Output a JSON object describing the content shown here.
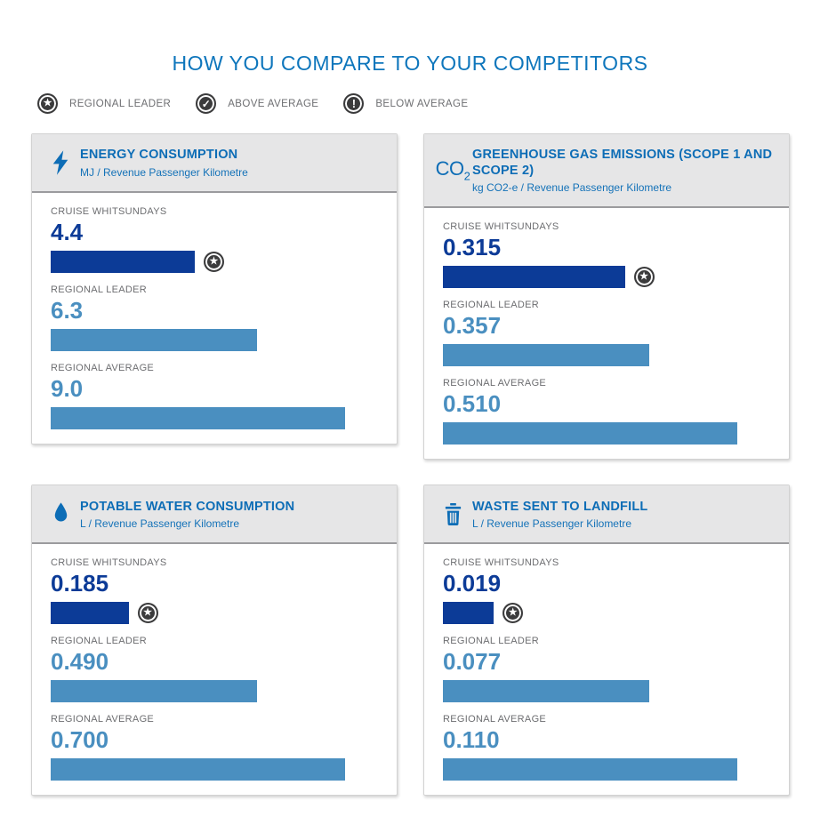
{
  "page_title": "HOW YOU COMPARE TO YOUR COMPETITORS",
  "legend": {
    "items": [
      {
        "icon": "star-badge-icon",
        "glyph": "★",
        "label": "REGIONAL LEADER"
      },
      {
        "icon": "check-badge-icon",
        "glyph": "✓",
        "label": "ABOVE AVERAGE"
      },
      {
        "icon": "exclamation-badge-icon",
        "glyph": "!",
        "label": "BELOW AVERAGE"
      }
    ]
  },
  "icons": {
    "co2_main": "CO",
    "co2_sub": "2"
  },
  "colors": {
    "title_blue": "#0e76bc",
    "card_title_blue": "#0d6db6",
    "dark_bar_blue": "#0c3b97",
    "light_bar_blue": "#4a8fc0",
    "label_gray": "#6d6e71",
    "badge_charcoal": "#3b3b3c",
    "card_header_gray": "#e6e6e7",
    "card_header_border_gray": "#9b9b9e"
  },
  "chart_data": [
    {
      "type": "bar",
      "orientation": "horizontal",
      "icon": "lightning-bolt-icon",
      "title": "ENERGY CONSUMPTION",
      "unit": "MJ / Revenue Passenger Kilometre",
      "categories": [
        "CRUISE WHITSUNDAYS",
        "REGIONAL LEADER",
        "REGIONAL AVERAGE"
      ],
      "values": [
        4.4,
        6.3,
        9.0
      ],
      "value_labels": [
        "4.4",
        "6.3",
        "9.0"
      ],
      "badge": {
        "row_index": 0,
        "type": "regional-leader-star"
      },
      "bar_colors": [
        "#0c3b97",
        "#4a8fc0",
        "#4a8fc0"
      ]
    },
    {
      "type": "bar",
      "orientation": "horizontal",
      "icon": "co2-icon",
      "title": "GREENHOUSE GAS EMISSIONS (SCOPE 1 AND SCOPE 2)",
      "unit": "kg CO2-e / Revenue Passenger Kilometre",
      "categories": [
        "CRUISE WHITSUNDAYS",
        "REGIONAL LEADER",
        "REGIONAL AVERAGE"
      ],
      "values": [
        0.315,
        0.357,
        0.51
      ],
      "value_labels": [
        "0.315",
        "0.357",
        "0.510"
      ],
      "badge": {
        "row_index": 0,
        "type": "regional-leader-star"
      },
      "bar_colors": [
        "#0c3b97",
        "#4a8fc0",
        "#4a8fc0"
      ]
    },
    {
      "type": "bar",
      "orientation": "horizontal",
      "icon": "water-drop-icon",
      "title": "POTABLE WATER CONSUMPTION",
      "unit": "L / Revenue Passenger Kilometre",
      "categories": [
        "CRUISE WHITSUNDAYS",
        "REGIONAL LEADER",
        "REGIONAL AVERAGE"
      ],
      "values": [
        0.185,
        0.49,
        0.7
      ],
      "value_labels": [
        "0.185",
        "0.490",
        "0.700"
      ],
      "badge": {
        "row_index": 0,
        "type": "regional-leader-star"
      },
      "bar_colors": [
        "#0c3b97",
        "#4a8fc0",
        "#4a8fc0"
      ]
    },
    {
      "type": "bar",
      "orientation": "horizontal",
      "icon": "trash-bin-icon",
      "title": "WASTE SENT TO LANDFILL",
      "unit": "L / Revenue Passenger Kilometre",
      "categories": [
        "CRUISE WHITSUNDAYS",
        "REGIONAL LEADER",
        "REGIONAL AVERAGE"
      ],
      "values": [
        0.019,
        0.077,
        0.11
      ],
      "value_labels": [
        "0.019",
        "0.077",
        "0.110"
      ],
      "badge": {
        "row_index": 0,
        "type": "regional-leader-star"
      },
      "bar_colors": [
        "#0c3b97",
        "#4a8fc0",
        "#4a8fc0"
      ]
    }
  ]
}
